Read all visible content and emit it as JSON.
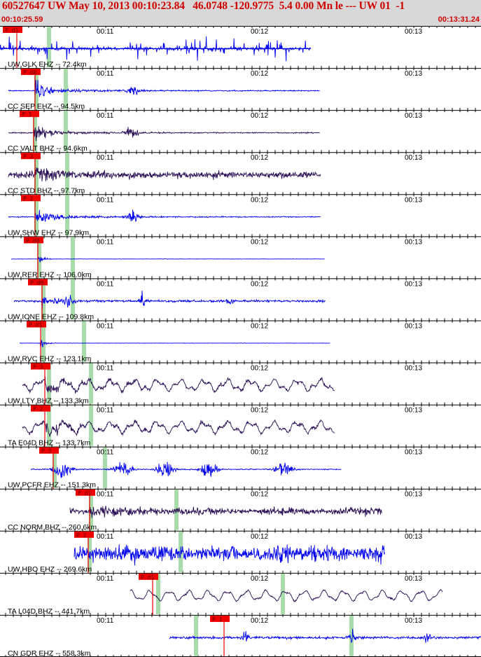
{
  "header": {
    "title": "60527647 UW May 10, 2013 00:10:23.84   46.0748 -120.9775  5.4 0.00 Mn le --- UW 01  -1",
    "start_time": "00:10:25.59",
    "end_time": "00:13:31.24"
  },
  "time_axis": {
    "label_11": "00:11",
    "label_12": "00:12",
    "label_13": "00:13"
  },
  "colors": {
    "blue_trace": "#0000ee",
    "purple_trace": "#2a0f55",
    "pick_red": "#ee0000",
    "pick_green": "#a8dca8",
    "header_bg": "#d8d8d8",
    "title_red": "#d00000"
  },
  "traces": [
    {
      "station": "UW GLK EHZ -- 72.4km",
      "pick_label": "P d1",
      "color": "blue",
      "kind": "spikes",
      "start": 0,
      "end": 444,
      "red_x": 24,
      "green_x": [
        70
      ]
    },
    {
      "station": "CC SEP EHZ -- 94.5km",
      "pick_label": "P d0",
      "color": "blue",
      "kind": "quake",
      "start": 12,
      "end": 457,
      "red_x": 50,
      "green_x": [
        52,
        94
      ]
    },
    {
      "station": "CC VALT BHZ -- 94.6km",
      "pick_label": "P 1",
      "color": "purple",
      "kind": "quake",
      "start": 12,
      "end": 457,
      "red_x": 48,
      "green_x": [
        50,
        94
      ]
    },
    {
      "station": "CC STD BHZ -- 97.7km",
      "pick_label": "P 3",
      "color": "purple",
      "kind": "noisy",
      "start": 12,
      "end": 458,
      "red_x": 50,
      "green_x": [
        52,
        96
      ]
    },
    {
      "station": "UW SHW EHZ -- 97.9km",
      "pick_label": "P 2",
      "color": "blue",
      "kind": "quake",
      "start": 12,
      "end": 458,
      "red_x": 50,
      "green_x": [
        52,
        96
      ]
    },
    {
      "station": "UW RER EHZ -- 106.0km",
      "pick_label": "P d0",
      "color": "blue",
      "kind": "flat",
      "start": 16,
      "end": 464,
      "red_x": 54,
      "green_x": [
        56,
        104
      ]
    },
    {
      "station": "UW IONE EHZ -- 109.8km",
      "pick_label": "P d0",
      "color": "blue",
      "kind": "events",
      "start": 20,
      "end": 465,
      "red_x": 60,
      "green_x": [
        62,
        104
      ]
    },
    {
      "station": "UW RVC EHZ -- 123.1km",
      "pick_label": "P d1",
      "color": "blue",
      "kind": "flat2",
      "start": 28,
      "end": 472,
      "red_x": 58,
      "green_x": [
        62,
        120
      ]
    },
    {
      "station": "UW LTY BHZ -- 133.3km",
      "pick_label": "P 3",
      "color": "purple",
      "kind": "wavy",
      "start": 32,
      "end": 478,
      "red_x": 64,
      "green_x": [
        70,
        130
      ]
    },
    {
      "station": "TA E04D BHZ -- 133.7km",
      "pick_label": "P 2",
      "color": "purple",
      "kind": "wavy",
      "start": 32,
      "end": 478,
      "red_x": 64,
      "green_x": [
        70,
        130
      ]
    },
    {
      "station": "UW PCFR EHZ -- 151.3km",
      "pick_label": "P 3",
      "color": "blue",
      "kind": "bursts",
      "start": 44,
      "end": 488,
      "red_x": 76,
      "green_x": [
        78,
        150
      ]
    },
    {
      "station": "CC NORM BHZ -- 260.6km",
      "pick_label": "P d1",
      "color": "purple",
      "kind": "noisy",
      "start": 100,
      "end": 546,
      "red_x": 128,
      "green_x": [
        130,
        252
      ]
    },
    {
      "station": "UW HBO EHZ -- 269.6km",
      "pick_label": "P 2",
      "color": "blue",
      "kind": "dense",
      "start": 106,
      "end": 550,
      "red_x": 126,
      "green_x": [
        128,
        258
      ]
    },
    {
      "station": "TA L04D BHZ -- 441.7km",
      "pick_label": "P d1",
      "color": "purple",
      "kind": "wavy2",
      "start": 186,
      "end": 632,
      "red_x": 218,
      "green_x": [
        226,
        404
      ]
    },
    {
      "station": "CN GDR EHZ -- 558.3km",
      "pick_label": "P 1",
      "color": "blue",
      "kind": "teleseis",
      "start": 242,
      "end": 687,
      "red_x": 320,
      "green_x": [
        280,
        502
      ]
    }
  ]
}
